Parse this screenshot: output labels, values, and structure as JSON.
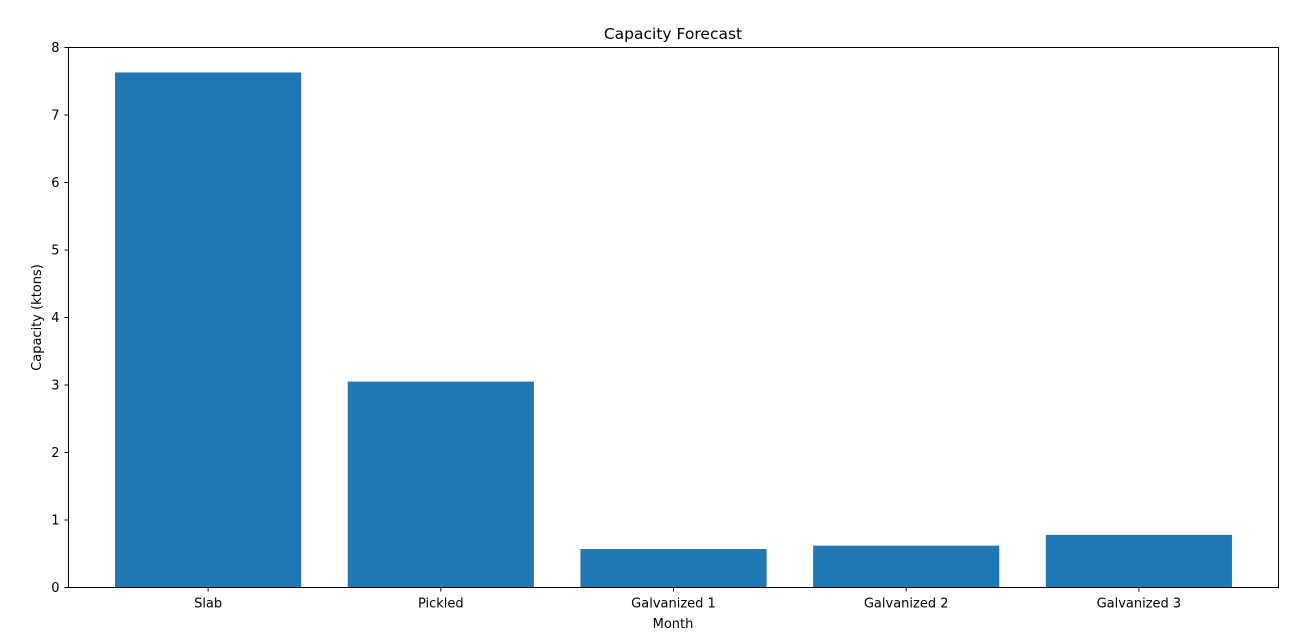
{
  "chart_data": {
    "type": "bar",
    "title": "Capacity Forecast",
    "xlabel": "Month",
    "ylabel": "Capacity (ktons)",
    "categories": [
      "Slab",
      "Pickled",
      "Galvanized 1",
      "Galvanized 2",
      "Galvanized 3"
    ],
    "values": [
      7.63,
      3.05,
      0.57,
      0.62,
      0.78
    ],
    "ylim": [
      0,
      8
    ],
    "yticks": [
      "0",
      "1",
      "2",
      "3",
      "4",
      "5",
      "6",
      "7",
      "8"
    ],
    "grid": false,
    "legend": "none",
    "bar_color": "#1f77b4"
  }
}
